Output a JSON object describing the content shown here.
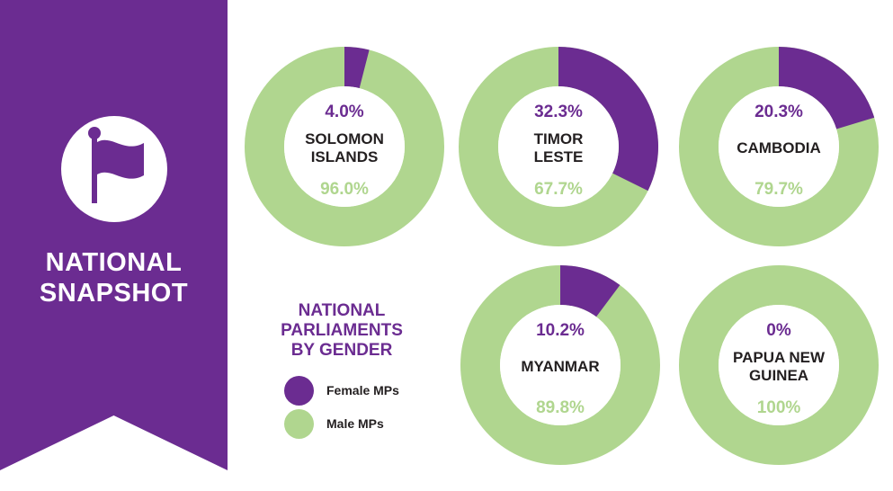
{
  "banner": {
    "title_line1": "NATIONAL",
    "title_line2": "SNAPSHOT",
    "icon": "flag-icon"
  },
  "legend": {
    "title_line1": "NATIONAL",
    "title_line2": "PARLIAMENTS",
    "title_line3": "BY GENDER",
    "items": [
      {
        "label": "Female MPs",
        "color": "#6b2c91"
      },
      {
        "label": "Male MPs",
        "color": "#b0d68f"
      }
    ]
  },
  "colors": {
    "female": "#6b2c91",
    "male": "#b0d68f",
    "banner": "#6b2c91"
  },
  "chart_data": [
    {
      "type": "pie",
      "country_lines": [
        "SOLOMON",
        "ISLANDS"
      ],
      "categories": [
        "Female MPs",
        "Male MPs"
      ],
      "values": [
        4.0,
        96.0
      ],
      "labels": [
        "4.0%",
        "96.0%"
      ]
    },
    {
      "type": "pie",
      "country_lines": [
        "TIMOR",
        "LESTE"
      ],
      "categories": [
        "Female MPs",
        "Male MPs"
      ],
      "values": [
        32.3,
        67.7
      ],
      "labels": [
        "32.3%",
        "67.7%"
      ]
    },
    {
      "type": "pie",
      "country_lines": [
        "CAMBODIA"
      ],
      "categories": [
        "Female MPs",
        "Male MPs"
      ],
      "values": [
        20.3,
        79.7
      ],
      "labels": [
        "20.3%",
        "79.7%"
      ]
    },
    {
      "type": "pie",
      "country_lines": [
        "MYANMAR"
      ],
      "categories": [
        "Female MPs",
        "Male MPs"
      ],
      "values": [
        10.2,
        89.8
      ],
      "labels": [
        "10.2%",
        "89.8%"
      ]
    },
    {
      "type": "pie",
      "country_lines": [
        "PAPUA NEW",
        "GUINEA"
      ],
      "categories": [
        "Female MPs",
        "Male MPs"
      ],
      "values": [
        0,
        100
      ],
      "labels": [
        "0%",
        "100%"
      ]
    }
  ]
}
